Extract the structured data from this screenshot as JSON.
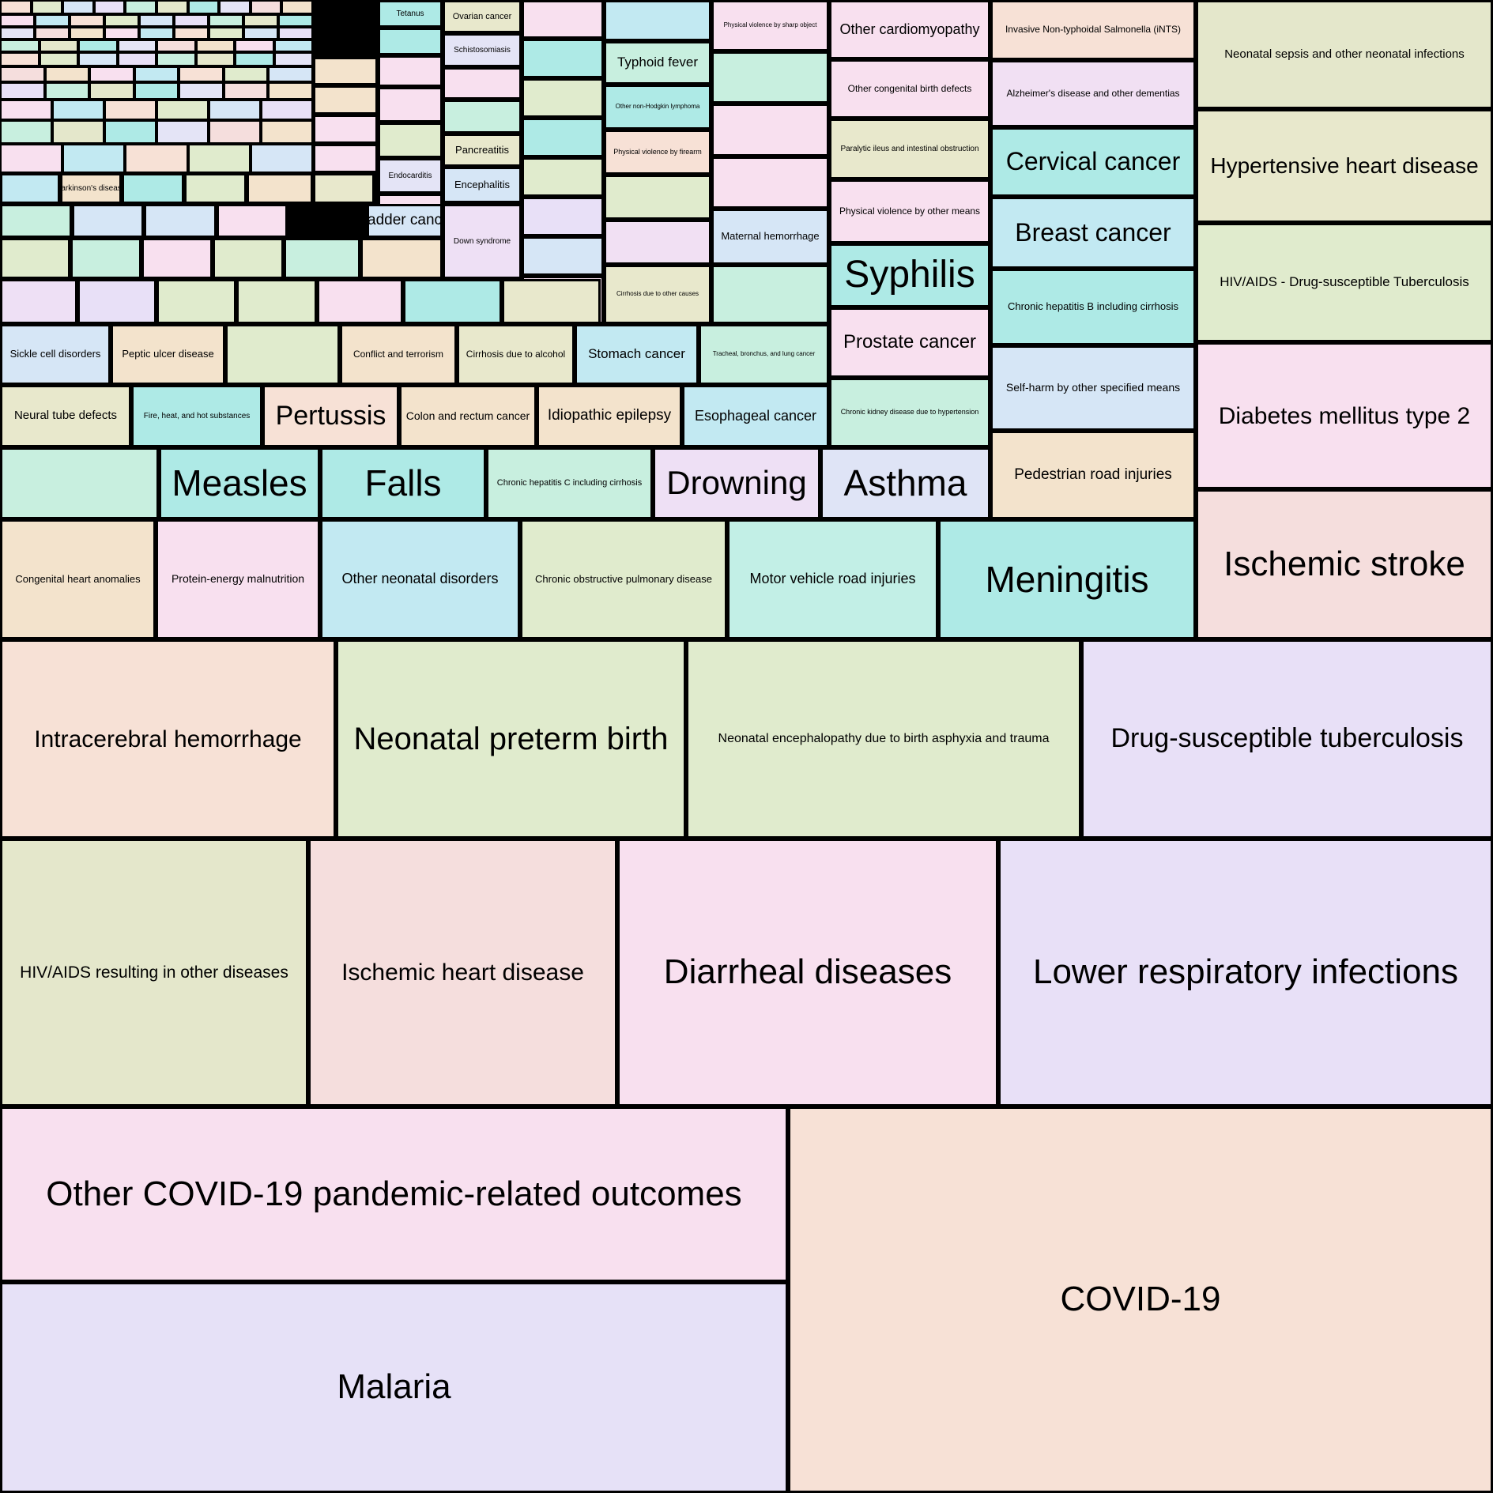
{
  "chart_data": {
    "type": "treemap",
    "title": "",
    "palette": [
      "#f7e1d6",
      "#e4e7cb",
      "#f8e0ef",
      "#e8e0f7",
      "#f5dedd",
      "#e0ebcd",
      "#aeeae6",
      "#c2e9f2",
      "#c8efdf",
      "#f3e3cc",
      "#d6e6f6",
      "#e4e4f6"
    ],
    "items": [
      {
        "label": "COVID-19",
        "color": "#f7e1d6"
      },
      {
        "label": "Malaria",
        "color": "#e6e1f7"
      },
      {
        "label": "Other COVID-19 pandemic-related outcomes",
        "color": "#f8e0ef"
      },
      {
        "label": "Lower respiratory infections",
        "color": "#e8e0f7"
      },
      {
        "label": "Diarrheal diseases",
        "color": "#f8e0ef"
      },
      {
        "label": "Ischemic heart disease",
        "color": "#f5dedd"
      },
      {
        "label": "HIV/AIDS resulting in other diseases",
        "color": "#e4e7cb"
      },
      {
        "label": "Drug-susceptible tuberculosis",
        "color": "#e8e0f7"
      },
      {
        "label": "Neonatal encephalopathy due to birth asphyxia and trauma",
        "color": "#e0ebcd"
      },
      {
        "label": "Neonatal preterm birth",
        "color": "#e0ebcd"
      },
      {
        "label": "Intracerebral hemorrhage",
        "color": "#f7e1d6"
      },
      {
        "label": "Ischemic stroke",
        "color": "#f5dedd"
      },
      {
        "label": "Diabetes mellitus type 2",
        "color": "#f8e0ef"
      },
      {
        "label": "HIV/AIDS - Drug-susceptible Tuberculosis",
        "color": "#e0ebcd"
      },
      {
        "label": "Hypertensive heart disease",
        "color": "#e8e8cc"
      },
      {
        "label": "Neonatal sepsis and other neonatal infections",
        "color": "#e4e7cb"
      },
      {
        "label": "Meningitis",
        "color": "#aeeae6"
      },
      {
        "label": "Motor vehicle road injuries",
        "color": "#c2efe6"
      },
      {
        "label": "Chronic obstructive pulmonary disease",
        "color": "#e0ebcd"
      },
      {
        "label": "Other neonatal disorders",
        "color": "#c2e9f2"
      },
      {
        "label": "Protein-energy malnutrition",
        "color": "#f8e0ef"
      },
      {
        "label": "Congenital heart anomalies",
        "color": "#f3e3cc"
      },
      {
        "label": "Pedestrian road injuries",
        "color": "#f3e3cc"
      },
      {
        "label": "Self-harm by other specified means",
        "color": "#d6e6f6"
      },
      {
        "label": "Chronic hepatitis B including cirrhosis",
        "color": "#aeeae6"
      },
      {
        "label": "Breast cancer",
        "color": "#c2e9f2"
      },
      {
        "label": "Cervical cancer",
        "color": "#aeeae6"
      },
      {
        "label": "Alzheimer's disease and other dementias",
        "color": "#f1e0f3"
      },
      {
        "label": "Invasive Non-typhoidal Salmonella (iNTS)",
        "color": "#f7e1d6"
      },
      {
        "label": "Asthma",
        "color": "#dfe4f6"
      },
      {
        "label": "Drowning",
        "color": "#eee0f5"
      },
      {
        "label": "Chronic hepatitis C including cirrhosis",
        "color": "#c8efdf"
      },
      {
        "label": "Falls",
        "color": "#aeeae6"
      },
      {
        "label": "Measles",
        "color": "#aeeae6"
      },
      {
        "label": "",
        "color": "#c8efdf"
      },
      {
        "label": "Chronic kidney disease due to hypertension",
        "color": "#c8efdf"
      },
      {
        "label": "Prostate cancer",
        "color": "#f8e0ef"
      },
      {
        "label": "Syphilis",
        "color": "#aeeae6"
      },
      {
        "label": "Physical violence by other means",
        "color": "#f8e0ef"
      },
      {
        "label": "Paralytic ileus and intestinal obstruction",
        "color": "#e8e8cc"
      },
      {
        "label": "Other congenital birth defects",
        "color": "#f8e0ef"
      },
      {
        "label": "Other cardiomyopathy",
        "color": "#f8e0ef"
      },
      {
        "label": "Esophageal cancer",
        "color": "#c2e9f2"
      },
      {
        "label": "Idiopathic epilepsy",
        "color": "#f3e3cc"
      },
      {
        "label": "Colon and rectum cancer",
        "color": "#f3e3cc"
      },
      {
        "label": "Pertussis",
        "color": "#f7e1d6"
      },
      {
        "label": "Fire, heat, and hot substances",
        "color": "#aeeae6"
      },
      {
        "label": "Neural tube defects",
        "color": "#e8e8cc"
      },
      {
        "label": "Tracheal, bronchus, and lung cancer",
        "color": "#c8efdf"
      },
      {
        "label": "Stomach cancer",
        "color": "#c2e9f2"
      },
      {
        "label": "Cirrhosis due to alcohol",
        "color": "#e8e8cc"
      },
      {
        "label": "Conflict and terrorism",
        "color": "#f3e3cc"
      },
      {
        "label": "",
        "color": "#e0ebcd"
      },
      {
        "label": "Peptic ulcer disease",
        "color": "#f3e3cc"
      },
      {
        "label": "Sickle cell disorders",
        "color": "#d6e6f6"
      },
      {
        "label": "",
        "color": "#c8efdf"
      },
      {
        "label": "Maternal hemorrhage",
        "color": "#d6e6f6"
      },
      {
        "label": "",
        "color": "#f8e0ef"
      },
      {
        "label": "",
        "color": "#f8e0ef"
      },
      {
        "label": "",
        "color": "#c8efdf"
      },
      {
        "label": "Physical violence by sharp object",
        "color": "#f8e0ef"
      },
      {
        "label": "Cirrhosis due to other causes",
        "color": "#e8e8cc"
      },
      {
        "label": "",
        "color": "#f1e0f3"
      },
      {
        "label": "",
        "color": "#e0ebcd"
      },
      {
        "label": "Physical violence by firearm",
        "color": "#f7e1d6"
      },
      {
        "label": "Other non-Hodgkin lymphoma",
        "color": "#aeeae6"
      },
      {
        "label": "Typhoid fever",
        "color": "#c8efdf"
      },
      {
        "label": "",
        "color": "#c2e9f2"
      },
      {
        "label": "",
        "color": "#f8e0ef"
      },
      {
        "label": "",
        "color": "#d6e6f6"
      },
      {
        "label": "",
        "color": "#e8e0f7"
      },
      {
        "label": "",
        "color": "#e0ebcd"
      },
      {
        "label": "",
        "color": "#aeeae6"
      },
      {
        "label": "",
        "color": "#e0ebcd"
      },
      {
        "label": "",
        "color": "#aeeae6"
      },
      {
        "label": "",
        "color": "#f8e0ef"
      },
      {
        "label": "Encephalitis",
        "color": "#d6e6f6"
      },
      {
        "label": "Pancreatitis",
        "color": "#e8e8cc"
      },
      {
        "label": "",
        "color": "#c8efdf"
      },
      {
        "label": "",
        "color": "#f8e0ef"
      },
      {
        "label": "Schistosomiasis",
        "color": "#e4e4f6"
      },
      {
        "label": "Ovarian cancer",
        "color": "#e8e8cc"
      },
      {
        "label": "",
        "color": "#f8e0ef"
      },
      {
        "label": "",
        "color": "#e4e4f6"
      },
      {
        "label": "",
        "color": "#f8e0ef"
      },
      {
        "label": "Endocarditis",
        "color": "#e4e4f6"
      },
      {
        "label": "",
        "color": "#e0ebcd"
      },
      {
        "label": "",
        "color": "#f8e0ef"
      },
      {
        "label": "",
        "color": "#f8e0ef"
      },
      {
        "label": "",
        "color": "#aeeae6"
      },
      {
        "label": "Tetanus",
        "color": "#aeeae6"
      },
      {
        "label": "Bladder cancer",
        "color": "#d6e6f6"
      },
      {
        "label": "",
        "color": "#e8e8cc"
      },
      {
        "label": "",
        "color": "#f3e3cc"
      },
      {
        "label": "",
        "color": "#e0ebcd"
      },
      {
        "label": "",
        "color": "#aeeae6"
      },
      {
        "label": "Parkinson's disease",
        "color": "#f3e3cc"
      },
      {
        "label": "",
        "color": "#c2e9f2"
      },
      {
        "label": "",
        "color": "#eee0f5"
      },
      {
        "label": "",
        "color": "#e8e0f7"
      },
      {
        "label": "",
        "color": "#e0ebcd"
      },
      {
        "label": "",
        "color": "#e0ebcd"
      },
      {
        "label": "",
        "color": "#f8e0ef"
      },
      {
        "label": "",
        "color": "#aeeae6"
      },
      {
        "label": "",
        "color": "#e8e8cc"
      },
      {
        "label": "Down syndrome",
        "color": "#eee0f5"
      },
      {
        "label": "",
        "color": "#f3e3cc"
      },
      {
        "label": "",
        "color": "#c8efdf"
      },
      {
        "label": "",
        "color": "#e0ebcd"
      },
      {
        "label": "",
        "color": "#f8e0ef"
      },
      {
        "label": "",
        "color": "#c8efdf"
      },
      {
        "label": "",
        "color": "#e0ebcd"
      },
      {
        "label": "",
        "color": "#f8e0ef"
      },
      {
        "label": "",
        "color": "#d6e6f6"
      },
      {
        "label": "",
        "color": "#d6e6f6"
      },
      {
        "label": "",
        "color": "#c8efdf"
      },
      {
        "label": "",
        "color": "#f8e0ef"
      },
      {
        "label": "",
        "color": "#f8e0ef"
      },
      {
        "label": "",
        "color": "#f3e3cc"
      },
      {
        "label": "",
        "color": "#f3e3cc"
      }
    ]
  }
}
